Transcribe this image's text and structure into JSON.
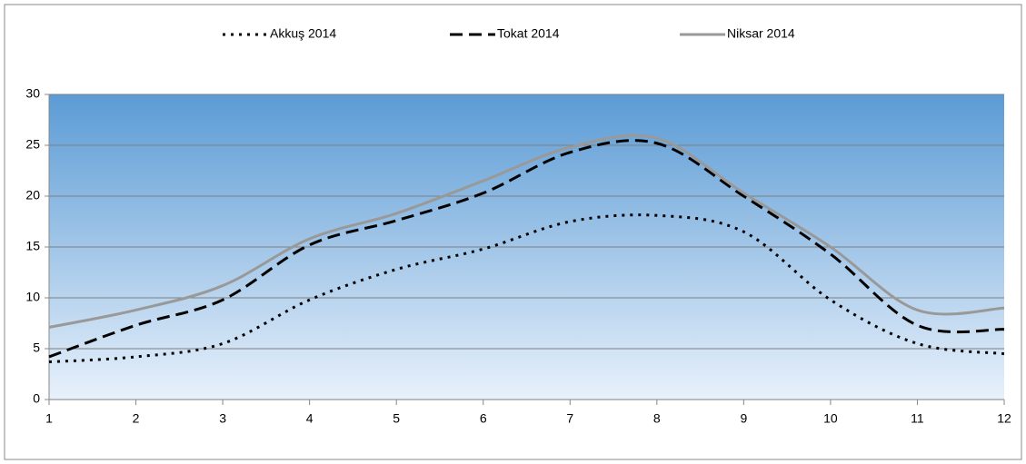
{
  "chart_data": {
    "type": "line",
    "x": [
      1,
      2,
      3,
      4,
      5,
      6,
      7,
      8,
      9,
      10,
      11,
      12
    ],
    "series": [
      {
        "name": "Akkuş 2014",
        "color": "#000000",
        "dash": "dotted",
        "values": [
          3.7,
          4.2,
          5.5,
          9.8,
          12.8,
          14.8,
          17.5,
          18.1,
          16.5,
          9.8,
          5.5,
          4.5
        ]
      },
      {
        "name": "Tokat 2014",
        "color": "#000000",
        "dash": "dashed",
        "values": [
          4.2,
          7.3,
          9.8,
          15.2,
          17.6,
          20.3,
          24.3,
          25.2,
          20.0,
          14.3,
          7.3,
          6.9
        ]
      },
      {
        "name": "Niksar 2014",
        "color": "#999999",
        "dash": "solid",
        "values": [
          7.1,
          8.8,
          11.2,
          15.8,
          18.3,
          21.5,
          24.8,
          25.7,
          20.3,
          15.0,
          8.8,
          9.0
        ]
      }
    ],
    "xlim": [
      1,
      12
    ],
    "xticks": [
      1,
      2,
      3,
      4,
      5,
      6,
      7,
      8,
      9,
      10,
      11,
      12
    ],
    "ylim": [
      0,
      30
    ],
    "yticks": [
      0,
      5,
      10,
      15,
      20,
      25,
      30
    ],
    "grid": true,
    "legend": "top",
    "smooth": true
  }
}
